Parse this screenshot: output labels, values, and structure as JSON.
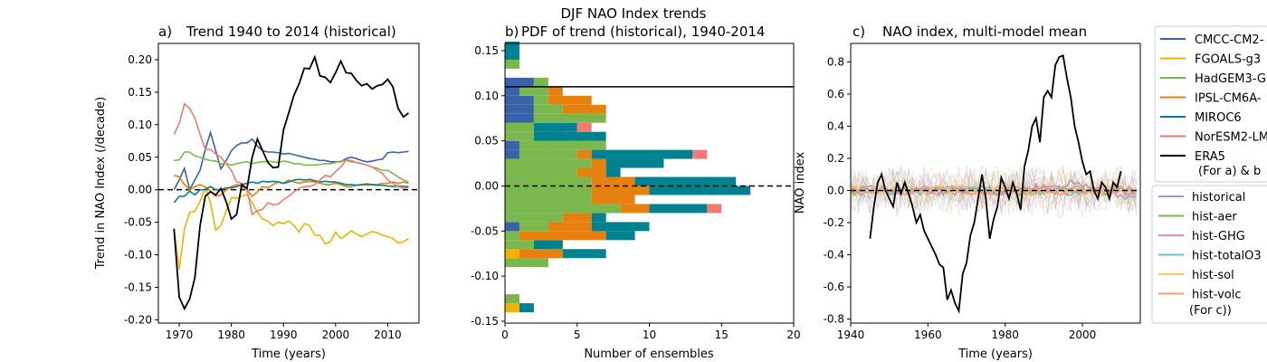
{
  "suptitle": "DJF NAO Index trends",
  "colors": {
    "CMCC": "#3a62a8",
    "FGOALS": "#f0b400",
    "HadGEM3": "#7ab84e",
    "IPSL": "#e6800f",
    "MIROC6": "#00818f",
    "NorESM2": "#f27a72",
    "ERA5": "#000000",
    "historical": "#b08ee0",
    "hist-aer": "#7ab84e",
    "hist-GHG": "#f28cae",
    "hist-totalO3": "#62c3d3",
    "hist-sol": "#f9c660",
    "hist-volc": "#f29e78"
  },
  "legend_models": {
    "entries": [
      "CMCC-CM2-",
      "FGOALS-g3",
      "HadGEM3-G",
      "IPSL-CM6A-",
      "MIROC6",
      "NorESM2-LM",
      "ERA5"
    ],
    "note": "(For a) & b"
  },
  "legend_experiments": {
    "entries": [
      "historical",
      "hist-aer",
      "hist-GHG",
      "hist-totalO3",
      "hist-sol",
      "hist-volc"
    ],
    "note": "(For c))"
  },
  "chart_data": [
    {
      "type": "line",
      "title": "Trend 1940 to 2014 (historical)",
      "panel_label": "a)",
      "xlabel": "Time (years)",
      "ylabel": "Trend in NAO Index (/decade)",
      "xlim": [
        1966,
        2016
      ],
      "ylim": [
        -0.205,
        0.225
      ],
      "xticks": [
        1970,
        1980,
        1990,
        2000,
        2010
      ],
      "yticks": [
        -0.2,
        -0.15,
        -0.1,
        -0.05,
        0.0,
        0.05,
        0.1,
        0.15,
        0.2
      ],
      "zero_line": "dashed",
      "x": [
        1969,
        1970,
        1971,
        1972,
        1973,
        1974,
        1975,
        1976,
        1977,
        1978,
        1979,
        1980,
        1981,
        1982,
        1983,
        1984,
        1985,
        1986,
        1987,
        1988,
        1989,
        1990,
        1991,
        1992,
        1993,
        1994,
        1995,
        1996,
        1997,
        1998,
        1999,
        2000,
        2001,
        2002,
        2003,
        2004,
        2005,
        2006,
        2007,
        2008,
        2009,
        2010,
        2011,
        2012,
        2013,
        2014
      ],
      "series": [
        {
          "name": "CMCC-CM2-",
          "color_key": "CMCC",
          "values": [
            0.0,
            0.015,
            0.033,
            0.0,
            0.015,
            0.03,
            0.062,
            0.088,
            0.06,
            0.032,
            0.045,
            0.06,
            0.068,
            0.072,
            0.072,
            0.078,
            0.067,
            0.06,
            0.058,
            0.058,
            0.057,
            0.055,
            0.056,
            0.054,
            0.052,
            0.05,
            0.048,
            0.047,
            0.045,
            0.045,
            0.043,
            0.043,
            0.043,
            0.048,
            0.05,
            0.048,
            0.045,
            0.043,
            0.044,
            0.046,
            0.047,
            0.057,
            0.058,
            0.057,
            0.058,
            0.059
          ]
        },
        {
          "name": "FGOALS-g3",
          "color_key": "FGOALS",
          "values": [
            -0.06,
            -0.122,
            -0.06,
            -0.035,
            -0.033,
            -0.018,
            0.003,
            -0.02,
            -0.062,
            -0.055,
            -0.033,
            -0.012,
            -0.013,
            -0.01,
            -0.007,
            -0.02,
            -0.035,
            -0.045,
            -0.048,
            -0.055,
            -0.05,
            -0.052,
            -0.048,
            -0.055,
            -0.065,
            -0.052,
            -0.055,
            -0.07,
            -0.07,
            -0.083,
            -0.08,
            -0.065,
            -0.075,
            -0.07,
            -0.063,
            -0.068,
            -0.072,
            -0.068,
            -0.064,
            -0.066,
            -0.07,
            -0.072,
            -0.075,
            -0.082,
            -0.08,
            -0.075
          ]
        },
        {
          "name": "HadGEM3-G",
          "color_key": "HadGEM3",
          "values": [
            0.045,
            0.046,
            0.058,
            0.058,
            0.052,
            0.05,
            0.047,
            0.045,
            0.044,
            0.04,
            0.04,
            0.038,
            0.04,
            0.042,
            0.043,
            0.04,
            0.042,
            0.043,
            0.044,
            0.043,
            0.042,
            0.044,
            0.043,
            0.04,
            0.04,
            0.038,
            0.038,
            0.038,
            0.039,
            0.04,
            0.04,
            0.042,
            0.044,
            0.045,
            0.043,
            0.042,
            0.04,
            0.038,
            0.035,
            0.033,
            0.03,
            0.03,
            0.025,
            0.02,
            0.015,
            0.012
          ]
        },
        {
          "name": "IPSL-CM6A-",
          "color_key": "IPSL",
          "values": [
            0.022,
            0.02,
            0.008,
            0.0,
            0.005,
            0.008,
            0.004,
            -0.002,
            -0.01,
            -0.008,
            0.0,
            0.005,
            0.008,
            0.005,
            0.0,
            -0.01,
            -0.003,
            0.005,
            0.003,
            0.008,
            0.012,
            0.01,
            0.015,
            0.012,
            0.01,
            0.012,
            0.013,
            0.012,
            0.01,
            0.008,
            0.008,
            0.01,
            0.008,
            0.005,
            0.005,
            0.007,
            0.008,
            0.007,
            0.008,
            0.008,
            0.01,
            0.01,
            0.012,
            0.01,
            0.012,
            0.01
          ]
        },
        {
          "name": "MIROC6",
          "color_key": "MIROC6",
          "values": [
            -0.02,
            -0.01,
            -0.01,
            -0.002,
            -0.008,
            0.0,
            0.0,
            0.005,
            0.0,
            0.0,
            0.003,
            0.003,
            0.005,
            0.008,
            0.01,
            0.012,
            0.01,
            0.013,
            0.012,
            0.013,
            0.012,
            0.01,
            0.012,
            0.015,
            0.016,
            0.015,
            0.016,
            0.014,
            0.012,
            0.013,
            0.012,
            0.012,
            0.01,
            0.008,
            0.008,
            0.007,
            0.008,
            0.009,
            0.008,
            0.007,
            0.007,
            0.006,
            0.005,
            0.006,
            0.005,
            0.005
          ]
        },
        {
          "name": "NorESM2-LM",
          "color_key": "NorESM2",
          "values": [
            0.085,
            0.102,
            0.132,
            0.125,
            0.11,
            0.085,
            0.062,
            0.062,
            0.055,
            0.05,
            0.04,
            0.03,
            0.012,
            0.01,
            0.0,
            -0.038,
            -0.032,
            -0.03,
            -0.02,
            -0.023,
            -0.022,
            -0.015,
            -0.01,
            -0.003,
            0.002,
            0.005,
            0.005,
            0.008,
            0.015,
            0.022,
            0.02,
            0.028,
            0.035,
            0.046,
            0.045,
            0.042,
            0.04,
            0.038,
            0.035,
            0.03,
            0.025,
            0.015,
            0.01,
            0.005,
            0.003,
            0.003
          ]
        },
        {
          "name": "ERA5",
          "color_key": "ERA5",
          "values": [
            -0.06,
            -0.165,
            -0.183,
            -0.168,
            -0.135,
            -0.055,
            -0.01,
            -0.003,
            -0.008,
            0.002,
            -0.018,
            -0.045,
            -0.038,
            0.008,
            0.002,
            0.05,
            0.078,
            0.06,
            0.042,
            0.034,
            0.035,
            0.092,
            0.118,
            0.145,
            0.163,
            0.187,
            0.186,
            0.204,
            0.175,
            0.173,
            0.165,
            0.18,
            0.198,
            0.18,
            0.179,
            0.168,
            0.16,
            0.163,
            0.155,
            0.16,
            0.162,
            0.17,
            0.158,
            0.125,
            0.112,
            0.118
          ]
        }
      ]
    },
    {
      "type": "bar",
      "orientation": "horizontal-stacked",
      "title": "PDF of trend (historical), 1940-2014",
      "panel_label": "b)",
      "xlabel": "Number of ensembles",
      "ylabel": "",
      "xlim": [
        0,
        20
      ],
      "ylim": [
        -0.152,
        0.158
      ],
      "xticks": [
        0,
        5,
        10,
        15,
        20
      ],
      "yticks": [
        -0.15,
        -0.1,
        -0.05,
        0.0,
        0.05,
        0.1,
        0.15
      ],
      "bin_width": 0.01,
      "reference_lines": [
        {
          "y": 0.11,
          "style": "solid"
        },
        {
          "y": 0.0,
          "style": "dashed"
        }
      ],
      "bins": [
        -0.14,
        -0.13,
        -0.12,
        -0.11,
        -0.1,
        -0.09,
        -0.08,
        -0.07,
        -0.06,
        -0.05,
        -0.04,
        -0.03,
        -0.02,
        -0.01,
        0.0,
        0.01,
        0.02,
        0.03,
        0.04,
        0.05,
        0.06,
        0.07,
        0.08,
        0.09,
        0.1,
        0.11,
        0.12,
        0.13,
        0.14,
        0.15
      ],
      "series": [
        {
          "name": "CMCC-CM2-",
          "color_key": "CMCC",
          "values": [
            0,
            0,
            0,
            0,
            0,
            0,
            0,
            0,
            0,
            1,
            0,
            0,
            0,
            0,
            0,
            0,
            0,
            1,
            1,
            0,
            0,
            2,
            2,
            2,
            1,
            2,
            0,
            0,
            0,
            0
          ]
        },
        {
          "name": "FGOALS-g3",
          "color_key": "FGOALS",
          "values": [
            1,
            0,
            0,
            0,
            0,
            0,
            1,
            0,
            0,
            0,
            0,
            0,
            0,
            0,
            0,
            0,
            0,
            0,
            0,
            0,
            0,
            0,
            0,
            0,
            0,
            0,
            0,
            0,
            0,
            0
          ]
        },
        {
          "name": "HadGEM3-G",
          "color_key": "HadGEM3",
          "values": [
            0,
            1,
            0,
            0,
            0,
            3,
            0,
            2,
            1,
            2,
            4,
            8,
            6,
            6,
            6,
            5,
            6,
            4,
            6,
            2,
            2,
            5,
            2,
            1,
            2,
            1,
            0,
            1,
            0,
            0
          ]
        },
        {
          "name": "IPSL-CM6A-",
          "color_key": "IPSL",
          "values": [
            0,
            0,
            0,
            0,
            0,
            0,
            3,
            0,
            6,
            3,
            2,
            2,
            3,
            4,
            3,
            2,
            1,
            1,
            0,
            0,
            0,
            0,
            3,
            3,
            1,
            0,
            0,
            0,
            0,
            0
          ]
        },
        {
          "name": "MIROC6",
          "color_key": "MIROC6",
          "values": [
            1,
            0,
            0,
            0,
            0,
            0,
            3,
            2,
            2,
            4,
            1,
            4,
            0,
            7,
            7,
            1,
            4,
            7,
            0,
            5,
            3,
            0,
            0,
            0,
            0,
            0,
            0,
            0,
            1,
            1
          ]
        },
        {
          "name": "NorESM2-LM",
          "color_key": "NorESM2",
          "values": [
            0,
            0,
            0,
            0,
            0,
            0,
            0,
            0,
            0,
            0,
            0,
            1,
            0,
            0,
            0,
            0,
            0,
            1,
            0,
            0,
            1,
            0,
            0,
            0,
            0,
            0,
            0,
            0,
            0,
            0
          ]
        }
      ]
    },
    {
      "type": "line",
      "title": "NAO index, multi-model mean",
      "panel_label": "c)",
      "xlabel": "Time (years)",
      "ylabel": "NAO index",
      "xlim": [
        1940,
        2015
      ],
      "ylim": [
        -0.825,
        0.915
      ],
      "xticks": [
        1940,
        1960,
        1980,
        2000
      ],
      "yticks": [
        -0.8,
        -0.6,
        -0.4,
        -0.2,
        0.0,
        0.2,
        0.4,
        0.6,
        0.8
      ],
      "zero_line": "dashed",
      "ensemble_series": [
        "historical",
        "hist-aer",
        "hist-GHG",
        "hist-totalO3",
        "hist-sol",
        "hist-volc"
      ],
      "era5": {
        "name": "ERA5",
        "x": [
          1945,
          1946,
          1947,
          1948,
          1949,
          1950,
          1951,
          1952,
          1953,
          1954,
          1955,
          1956,
          1957,
          1958,
          1959,
          1960,
          1961,
          1962,
          1963,
          1964,
          1965,
          1966,
          1967,
          1968,
          1969,
          1970,
          1971,
          1972,
          1973,
          1974,
          1975,
          1976,
          1977,
          1978,
          1979,
          1980,
          1981,
          1982,
          1983,
          1984,
          1985,
          1986,
          1987,
          1988,
          1989,
          1990,
          1991,
          1992,
          1993,
          1994,
          1995,
          1996,
          1997,
          1998,
          1999,
          2000,
          2001,
          2002,
          2003,
          2004,
          2005,
          2006,
          2007,
          2008,
          2009,
          2010
        ],
        "values": [
          -0.3,
          -0.1,
          0.05,
          0.1,
          0.0,
          -0.05,
          -0.1,
          0.05,
          -0.02,
          0.05,
          -0.02,
          -0.1,
          -0.2,
          -0.15,
          -0.25,
          -0.3,
          -0.35,
          -0.4,
          -0.46,
          -0.48,
          -0.68,
          -0.62,
          -0.7,
          -0.75,
          -0.52,
          -0.45,
          -0.28,
          -0.2,
          -0.05,
          0.1,
          -0.05,
          -0.3,
          -0.18,
          -0.1,
          0.08,
          0.02,
          -0.05,
          0.05,
          -0.02,
          -0.12,
          0.15,
          0.25,
          0.4,
          0.45,
          0.3,
          0.58,
          0.62,
          0.58,
          0.78,
          0.83,
          0.84,
          0.7,
          0.58,
          0.4,
          0.3,
          0.18,
          0.1,
          0.12,
          0.0,
          -0.05,
          0.05,
          0.02,
          -0.05,
          0.05,
          0.02,
          0.12
        ]
      }
    }
  ]
}
